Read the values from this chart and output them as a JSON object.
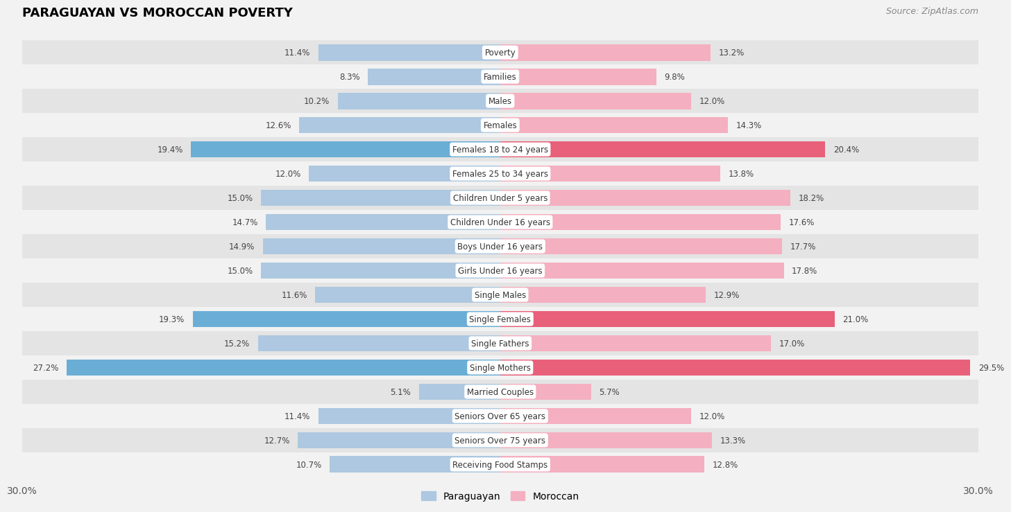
{
  "title": "PARAGUAYAN VS MOROCCAN POVERTY",
  "source": "Source: ZipAtlas.com",
  "categories": [
    "Poverty",
    "Families",
    "Males",
    "Females",
    "Females 18 to 24 years",
    "Females 25 to 34 years",
    "Children Under 5 years",
    "Children Under 16 years",
    "Boys Under 16 years",
    "Girls Under 16 years",
    "Single Males",
    "Single Females",
    "Single Fathers",
    "Single Mothers",
    "Married Couples",
    "Seniors Over 65 years",
    "Seniors Over 75 years",
    "Receiving Food Stamps"
  ],
  "paraguayan": [
    11.4,
    8.3,
    10.2,
    12.6,
    19.4,
    12.0,
    15.0,
    14.7,
    14.9,
    15.0,
    11.6,
    19.3,
    15.2,
    27.2,
    5.1,
    11.4,
    12.7,
    10.7
  ],
  "moroccan": [
    13.2,
    9.8,
    12.0,
    14.3,
    20.4,
    13.8,
    18.2,
    17.6,
    17.7,
    17.8,
    12.9,
    21.0,
    17.0,
    29.5,
    5.7,
    12.0,
    13.3,
    12.8
  ],
  "paraguayan_color_normal": "#adc8e0",
  "paraguayan_color_highlight": "#6aaed6",
  "moroccan_color_normal": "#f4afc0",
  "moroccan_color_highlight": "#e8607a",
  "highlight_threshold": 19.0,
  "bar_height": 0.68,
  "xlim_max": 30.0,
  "background_color": "#f2f2f2",
  "row_color_dark": "#e4e4e4",
  "row_color_light": "#f2f2f2",
  "legend_paraguayan_color": "#adc8e0",
  "legend_moroccan_color": "#f4afc0",
  "center_label_bg": "#ffffff"
}
